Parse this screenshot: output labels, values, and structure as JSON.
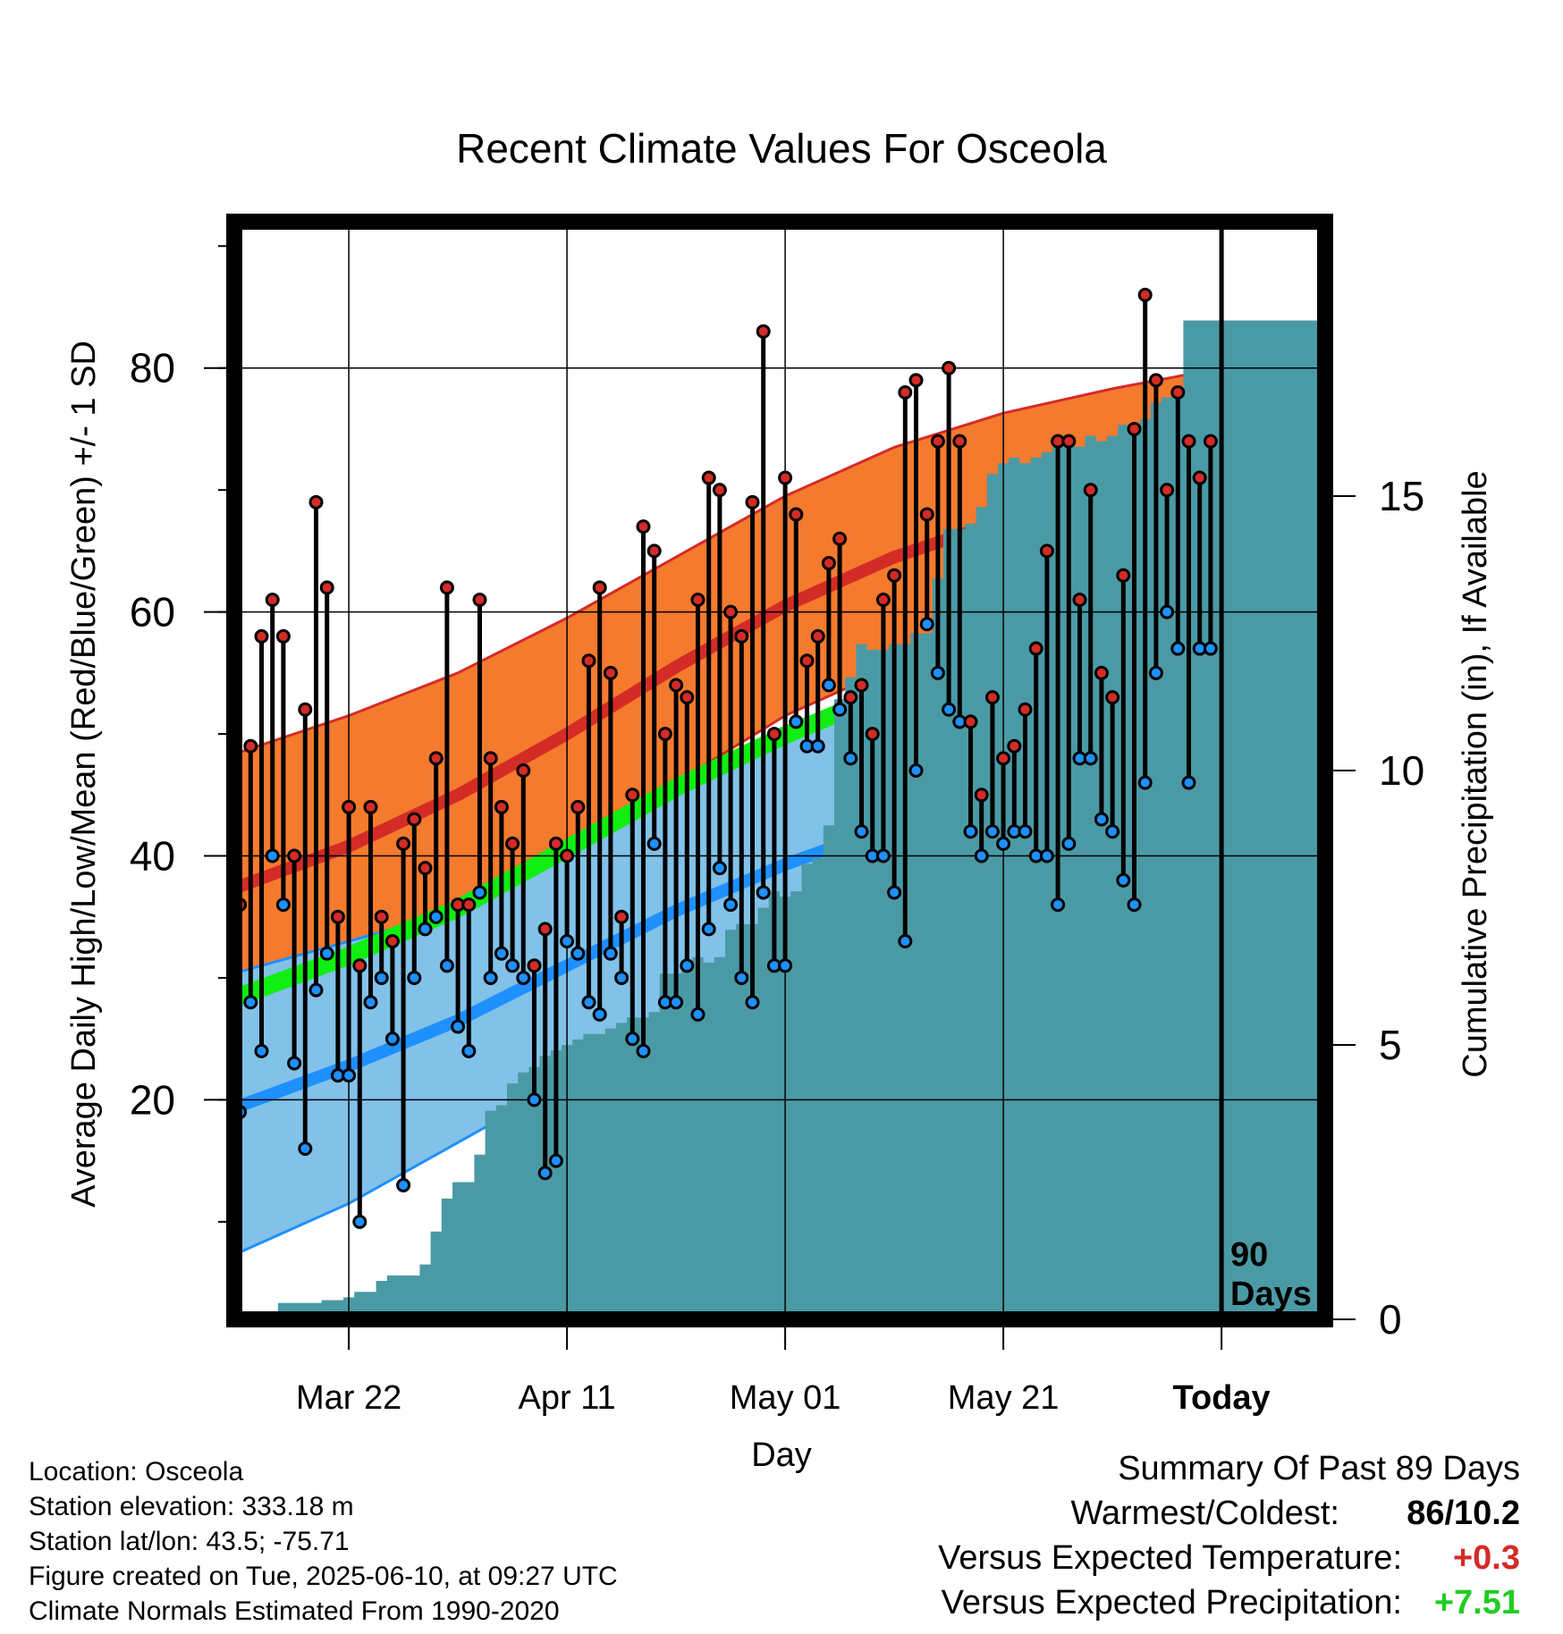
{
  "chart_data": {
    "type": "line",
    "title": "Recent Climate Values For Osceola",
    "xlabel": "Day",
    "ylabel": "Average Daily High/Low/Mean (Red/Blue/Green) +/- 1 SD",
    "y2label": "Cumulative Precipitation (in), If Available",
    "ylim": [
      2,
      92
    ],
    "y2lim": [
      0,
      20
    ],
    "xlim": [
      -10.5,
      89.5
    ],
    "yticks": [
      20,
      40,
      60,
      80
    ],
    "y2ticks": [
      0,
      5,
      10,
      15
    ],
    "xticks": [
      {
        "day": 0,
        "label": "Mar 22"
      },
      {
        "day": 20,
        "label": "Apr 11"
      },
      {
        "day": 40,
        "label": "May 01"
      },
      {
        "day": 60,
        "label": "May 21"
      },
      {
        "day": 80,
        "label": "Today"
      }
    ],
    "today_day": 80,
    "today_label": "90 Days",
    "grid": true,
    "colors": {
      "high_band": "#f47a2e",
      "high_line": "#d42b27",
      "high_edge": "#d42b27",
      "low_band": "#82c1e8",
      "low_line": "#1e90ff",
      "low_edge": "#1e90ff",
      "mean_line": "#11ee11",
      "precip": "#4a9aa5",
      "high_marker": "#d42b27",
      "low_marker": "#1e90ff",
      "warm_anomaly": "#d42b27",
      "wet_anomaly": "#22cc22"
    },
    "normals": {
      "day": [
        -10,
        0,
        10,
        20,
        30,
        40,
        50,
        60,
        70,
        80,
        90
      ],
      "high_mean": [
        37.5,
        40.8,
        45,
        50,
        55.5,
        60.5,
        64.5,
        67.5,
        70,
        72.5,
        74.5
      ],
      "high_upper": [
        48.5,
        51.5,
        55,
        59.5,
        64.5,
        69.5,
        73.5,
        76.3,
        78.3,
        80,
        81.8
      ],
      "high_lower": [
        27,
        30.5,
        34.5,
        40.5,
        46,
        51.5,
        55.5,
        58.5,
        61.5,
        64,
        67.5
      ],
      "low_mean": [
        19.5,
        22.8,
        26.5,
        31,
        35.5,
        39.3,
        42.5,
        45.5,
        48.5,
        51.5,
        55
      ],
      "low_upper": [
        30.5,
        33,
        35.5,
        40,
        45,
        49.5,
        53,
        55.5,
        57.5,
        59.5,
        61.5
      ],
      "low_lower": [
        7.5,
        11.5,
        16.5,
        21.5,
        26.5,
        31,
        34.5,
        38,
        41.5,
        45,
        48.5
      ],
      "mean_mean": [
        28.5,
        31.8,
        35.7,
        40.6,
        45.6,
        49.9,
        53.6,
        56.5,
        59.3,
        62,
        64.7
      ]
    },
    "daily": {
      "day": [
        -10,
        -9,
        -8,
        -7,
        -6,
        -5,
        -4,
        -3,
        -2,
        -1,
        0,
        1,
        2,
        3,
        4,
        5,
        6,
        7,
        8,
        9,
        10,
        11,
        12,
        13,
        14,
        15,
        16,
        17,
        18,
        19,
        20,
        21,
        22,
        23,
        24,
        25,
        26,
        27,
        28,
        29,
        30,
        31,
        32,
        33,
        34,
        35,
        36,
        37,
        38,
        39,
        40,
        41,
        42,
        43,
        44,
        45,
        46,
        47,
        48,
        49,
        50,
        51,
        52,
        53,
        54,
        55,
        56,
        57,
        58,
        59,
        60,
        61,
        62,
        63,
        64,
        65,
        66,
        67,
        68,
        69,
        70,
        71,
        72,
        73,
        74,
        75,
        76,
        77,
        78,
        79
      ],
      "high": [
        36,
        49,
        58,
        61,
        58,
        40,
        52,
        69,
        62,
        35,
        44,
        31,
        44,
        35,
        33,
        41,
        43,
        39,
        48,
        62,
        36,
        36,
        61,
        48,
        44,
        41,
        47,
        31,
        34,
        41,
        40,
        44,
        56,
        62,
        55,
        35,
        45,
        67,
        65,
        50,
        54,
        53,
        61,
        71,
        70,
        60,
        58,
        69,
        83,
        50,
        71,
        68,
        56,
        58,
        64,
        66,
        53,
        54,
        50,
        61,
        63,
        78,
        79,
        68,
        74,
        80,
        74,
        51,
        45,
        53,
        48,
        49,
        52,
        57,
        65,
        74,
        74,
        61,
        70,
        55,
        53,
        63,
        75,
        86,
        79,
        70,
        78,
        74,
        71,
        74
      ],
      "low": [
        19,
        28,
        24,
        40,
        36,
        23,
        16,
        29,
        32,
        22,
        22,
        10,
        28,
        30,
        25,
        13,
        30,
        34,
        35,
        31,
        26,
        24,
        37,
        30,
        32,
        31,
        30,
        20,
        14,
        15,
        33,
        32,
        28,
        27,
        32,
        30,
        25,
        24,
        41,
        28,
        28,
        31,
        27,
        34,
        39,
        36,
        30,
        28,
        37,
        31,
        31,
        51,
        49,
        49,
        54,
        52,
        48,
        42,
        40,
        40,
        37,
        33,
        47,
        59,
        55,
        52,
        51,
        42,
        40,
        42,
        41,
        42,
        42,
        40,
        40,
        36,
        41,
        48,
        48,
        43,
        42,
        38,
        36,
        46,
        55,
        60,
        57,
        46,
        57,
        57
      ]
    },
    "precip": {
      "day": [
        -6,
        -5,
        -4,
        -3,
        -2,
        -1,
        0,
        1,
        2,
        3,
        4,
        5,
        6,
        7,
        8,
        9,
        10,
        11,
        12,
        13,
        14,
        15,
        16,
        17,
        18,
        19,
        20,
        21,
        22,
        23,
        24,
        25,
        26,
        27,
        28,
        29,
        30,
        31,
        32,
        33,
        34,
        35,
        36,
        37,
        38,
        39,
        40,
        41,
        42,
        43,
        44,
        45,
        46,
        47,
        48,
        49,
        50,
        51,
        52,
        53,
        54,
        55,
        56,
        57,
        58,
        59,
        60,
        61,
        62,
        63,
        64,
        65,
        66,
        67,
        68,
        69,
        70,
        71,
        72,
        73,
        74,
        75,
        76,
        77,
        78,
        79,
        80,
        89
      ],
      "value": [
        0.3,
        0.3,
        0.3,
        0.3,
        0.35,
        0.35,
        0.4,
        0.5,
        0.5,
        0.7,
        0.8,
        0.8,
        0.8,
        1.0,
        1.6,
        2.2,
        2.5,
        2.5,
        3.0,
        3.8,
        3.9,
        4.3,
        4.5,
        4.6,
        4.8,
        4.9,
        5.0,
        5.1,
        5.2,
        5.2,
        5.3,
        5.4,
        5.5,
        5.5,
        5.6,
        6.3,
        6.3,
        6.4,
        6.6,
        6.5,
        6.6,
        7.1,
        7.2,
        7.2,
        7.5,
        7.8,
        7.7,
        7.8,
        8.3,
        8.4,
        9.0,
        11.3,
        11.7,
        12.3,
        12.2,
        12.2,
        12.3,
        12.3,
        12.5,
        12.5,
        13.5,
        14.4,
        14.4,
        14.5,
        14.8,
        15.4,
        15.6,
        15.7,
        15.6,
        15.7,
        15.8,
        15.9,
        16.0,
        15.9,
        16.1,
        16.0,
        16.1,
        16.3,
        16.3,
        16.4,
        16.7,
        16.8,
        16.9,
        18.2,
        18.2,
        18.2,
        18.2,
        18.2
      ]
    }
  },
  "footer": {
    "location": "Location: Osceola",
    "elevation": "Station elevation: 333.18 m",
    "latlon": "Station lat/lon: 43.5; -75.71",
    "created": "Figure created on Tue, 2025-06-10, at 09:27 UTC",
    "normals": "Climate Normals Estimated From 1990-2020"
  },
  "summary": {
    "title": "Summary Of Past 89 Days",
    "warmest_label": "Warmest/Coldest:",
    "warmest_value": "86/10.2",
    "temp_label": "Versus Expected Temperature:",
    "temp_value": "+0.3",
    "precip_label": "Versus Expected Precipitation:",
    "precip_value": "+7.51"
  }
}
